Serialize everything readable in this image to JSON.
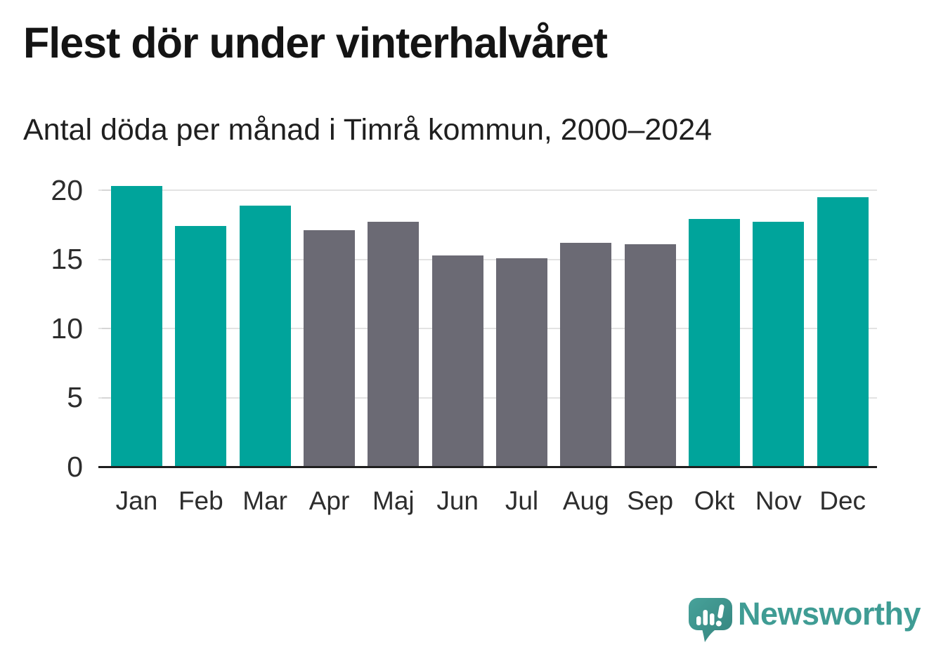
{
  "header": {
    "title": "Flest dör under vinterhalvåret",
    "subtitle": "Antal döda per månad i Timrå kommun, 2000–2024"
  },
  "chart_data": {
    "type": "bar",
    "title": "Flest dör under vinterhalvåret",
    "subtitle": "Antal döda per månad i Timrå kommun, 2000–2024",
    "categories": [
      "Jan",
      "Feb",
      "Mar",
      "Apr",
      "Maj",
      "Jun",
      "Jul",
      "Aug",
      "Sep",
      "Okt",
      "Nov",
      "Dec"
    ],
    "values": [
      20.3,
      17.4,
      18.9,
      17.1,
      17.7,
      15.3,
      15.1,
      16.2,
      16.1,
      17.9,
      17.7,
      19.5
    ],
    "bar_colors": [
      "#00a49b",
      "#00a49b",
      "#00a49b",
      "#6b6a74",
      "#6b6a74",
      "#6b6a74",
      "#6b6a74",
      "#6b6a74",
      "#6b6a74",
      "#00a49b",
      "#00a49b",
      "#00a49b"
    ],
    "palette": {
      "highlight_teal": "#00a49b",
      "neutral_gray": "#6b6a74",
      "grid": "#e3e3e3",
      "baseline": "#1f1f1f",
      "axis_text": "#2d2d2d"
    },
    "xlabel": "",
    "ylabel": "",
    "ylim": [
      0,
      20
    ],
    "yticks": [
      0,
      5,
      10,
      15,
      20
    ],
    "grid": "horizontal",
    "legend": "none"
  },
  "footer": {
    "brand": "Newsworthy",
    "brand_color": "#3f9c94",
    "logo_icon": "newsworthy-bubble-chart-icon"
  }
}
